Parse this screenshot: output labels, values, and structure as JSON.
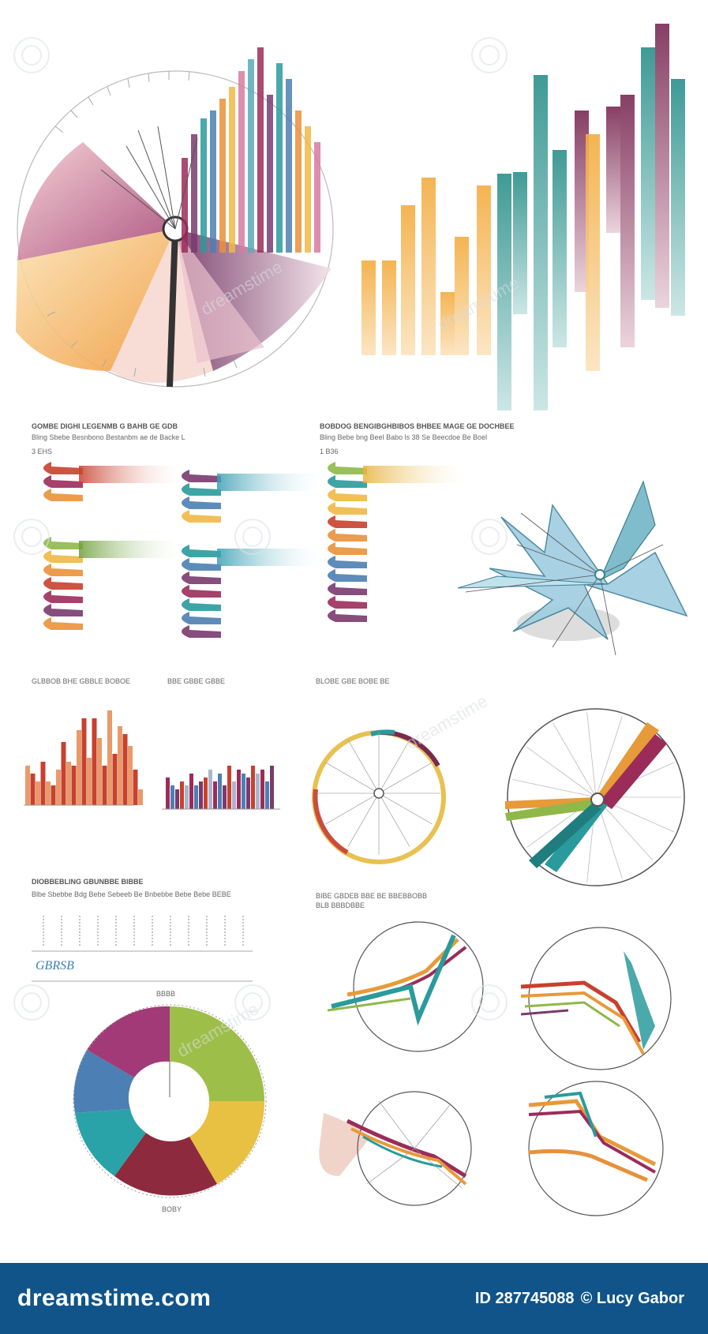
{
  "watermark": {
    "brand_text": "dreamstime",
    "footer_brand": "dreamstime.com",
    "image_id": "ID 287745088",
    "author": "© Lucy Gabor"
  },
  "colors": {
    "footer_bg": "#10548a",
    "magenta": "#9b2c5a",
    "purple": "#7a3a6e",
    "orange": "#e9913a",
    "amber": "#f0b843",
    "teal": "#2a9a9c",
    "blue": "#4c7fb3",
    "red": "#c8402e",
    "green": "#8fb849"
  },
  "icons": [
    "spiral-watermark-icon",
    "radial-chart-icon",
    "ribbon-chart-icon",
    "star-map-icon",
    "donut-chart-icon"
  ],
  "captions": {
    "section_mid_left_heading": "GOMBE DIGHI LEGENMB G BAHB GE GDB",
    "section_mid_left_sub": "Bling Sbebe Besnbono Bestanbm ae de Backe L",
    "section_mid_left_label": "3 EHS",
    "section_mid_right_heading": "BOBDOG BENGIBGHBIBOS BHBEE MAGE GE DOCHBEE",
    "section_mid_right_sub": "Bling Bebe bng Beel Babo ls 38 Se Beecdoe Be Boel",
    "section_mid_right_label": "1 B36",
    "ribbon_caption_1": "GLBBOB BHE GBBLE BOBOE",
    "ribbon_caption_2": "BBE GBBE GBBE",
    "ribbon_caption_3": "BLOBE GBE BOBE BE",
    "lower_heading": "DIOBBEBLING GBUNBBE BIBBE",
    "lower_sub": "Blbe Sbebbe Bdg Bebe Sebeeb Be Bnbebbe Bebe Bebe BEBE",
    "lower_right_heading": "BIBE GBDEB BBE BE BBEBBOBB",
    "lower_right_sub": "BLB BBBDBBE",
    "pie_top_label": "BBBB",
    "pie_bottom_label": "BOBY",
    "legend_glyph": "GBRSB"
  }
}
